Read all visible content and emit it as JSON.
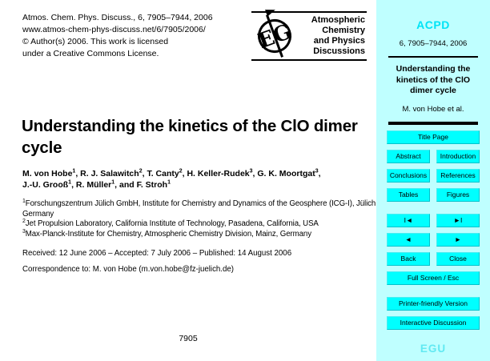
{
  "page": {
    "pub_info": [
      "Atmos. Chem. Phys. Discuss., 6, 7905–7944, 2006",
      "www.atmos-chem-phys-discuss.net/6/7905/2006/",
      "© Author(s) 2006. This work is licensed",
      "under a Creative Commons License."
    ],
    "journal_name_lines": [
      "Atmospheric",
      "Chemistry",
      "and Physics",
      "Discussions"
    ],
    "logo_name": "egu-globe-logo",
    "title": "Understanding the kinetics of the ClO dimer cycle",
    "author_lines": [
      [
        {
          "t": "M. von Hobe",
          "s": "1"
        },
        {
          "t": ", R. J. Salawitch",
          "s": "2"
        },
        {
          "t": ", T. Canty",
          "s": "2"
        },
        {
          "t": ", H. Keller-Rudek",
          "s": "3"
        },
        {
          "t": ", G. K. Moortgat",
          "s": "3"
        },
        {
          "t": ","
        }
      ],
      [
        {
          "t": "J.-U. Grooß",
          "s": "1"
        },
        {
          "t": ", R. Müller",
          "s": "1"
        },
        {
          "t": ", and F. Stroh",
          "s": "1"
        }
      ]
    ],
    "affiliations": [
      {
        "s": "1",
        "t": "Forschungszentrum Jülich GmbH, Institute for Chemistry and Dynamics of the Geosphere (ICG-I), Jülich, Germany"
      },
      {
        "s": "2",
        "t": "Jet Propulsion Laboratory, California Institute of Technology, Pasadena, California, USA"
      },
      {
        "s": "3",
        "t": "Max-Planck-Institute for Chemistry, Atmospheric Chemistry Division, Mainz, Germany"
      }
    ],
    "received_line": "Received: 12 June 2006 – Accepted: 7 July 2006 – Published: 14 August 2006",
    "correspondence_line": "Correspondence to: M. von Hobe (m.von.hobe@fz-juelich.de)",
    "page_number": "7905"
  },
  "sidebar": {
    "journal_abbr": "ACPD",
    "issue_line": "6, 7905–7944, 2006",
    "paper_title": "Understanding the kinetics of the ClO dimer cycle",
    "paper_authors": "M. von Hobe et al.",
    "button_rows": [
      [
        {
          "label": "Title Page",
          "name": "title-page-button"
        }
      ],
      [
        {
          "label": "Abstract",
          "name": "abstract-button"
        },
        {
          "label": "Introduction",
          "name": "introduction-button"
        }
      ],
      [
        {
          "label": "Conclusions",
          "name": "conclusions-button"
        },
        {
          "label": "References",
          "name": "references-button"
        }
      ],
      [
        {
          "label": "Tables",
          "name": "tables-button"
        },
        {
          "label": "Figures",
          "name": "figures-button"
        }
      ],
      [
        {
          "label": "I◄",
          "name": "first-page-button"
        },
        {
          "label": "►I",
          "name": "last-page-button"
        }
      ],
      [
        {
          "label": "◄",
          "name": "previous-page-button"
        },
        {
          "label": "►",
          "name": "next-page-button"
        }
      ],
      [
        {
          "label": "Back",
          "name": "back-button"
        },
        {
          "label": "Close",
          "name": "close-button"
        }
      ],
      [
        {
          "label": "Full Screen / Esc",
          "name": "full-screen-button"
        }
      ],
      [
        {
          "label": "Printer-friendly Version",
          "name": "printer-friendly-version-button"
        }
      ],
      [
        {
          "label": "Interactive Discussion",
          "name": "interactive-discussion-button"
        }
      ]
    ],
    "footer": "EGU",
    "colors": {
      "background": "#bfffff",
      "button": "#00ffff",
      "accent_text": "#00e4f6",
      "footer_text": "#62e9f2"
    }
  }
}
